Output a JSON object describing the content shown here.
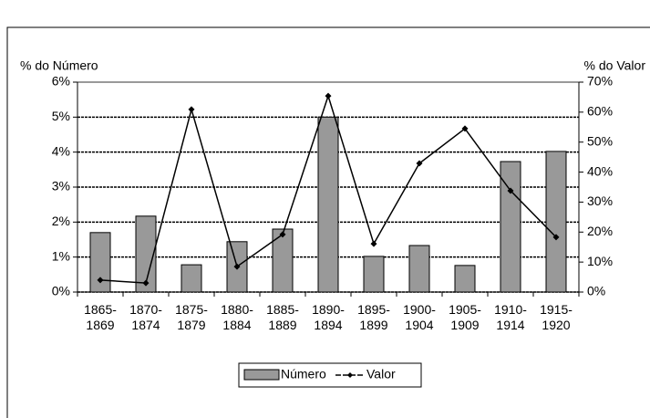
{
  "chart_data": {
    "type": "bar-line",
    "y_label": "% do Número",
    "y2_label": "% do Valor",
    "categories": [
      "1865-1869",
      "1870-1874",
      "1875-1879",
      "1880-1884",
      "1885-1889",
      "1890-1894",
      "1895-1899",
      "1900-1904",
      "1905-1909",
      "1910-1914",
      "1915-1920"
    ],
    "series": [
      {
        "name": "Número",
        "type": "bar",
        "color": "#999999",
        "values": [
          1.7,
          2.17,
          0.78,
          1.44,
          1.8,
          5.0,
          1.02,
          1.33,
          0.76,
          3.73,
          4.02
        ]
      },
      {
        "name": "Valor",
        "type": "line",
        "axis": "y2",
        "color": "#000000",
        "values": [
          4.0,
          3.0,
          60.9,
          8.5,
          19.2,
          65.4,
          16.1,
          42.9,
          54.5,
          33.8,
          18.3
        ]
      }
    ],
    "ylim": [
      0,
      6
    ],
    "yticks": [
      {
        "value": 0,
        "label": "0%"
      },
      {
        "value": 1,
        "label": "1%"
      },
      {
        "value": 2,
        "label": "2%"
      },
      {
        "value": 3,
        "label": "3%"
      },
      {
        "value": 4,
        "label": "4%"
      },
      {
        "value": 5,
        "label": "5%"
      },
      {
        "value": 6,
        "label": "6%"
      }
    ],
    "y2lim": [
      0,
      70
    ],
    "y2ticks": [
      {
        "value": 0,
        "label": "0%"
      },
      {
        "value": 10,
        "label": "10%"
      },
      {
        "value": 20,
        "label": "20%"
      },
      {
        "value": 30,
        "label": "30%"
      },
      {
        "value": 40,
        "label": "40%"
      },
      {
        "value": 50,
        "label": "50%"
      },
      {
        "value": 60,
        "label": "60%"
      },
      {
        "value": 70,
        "label": "70%"
      }
    ],
    "grid": true,
    "legend": "bottom"
  }
}
